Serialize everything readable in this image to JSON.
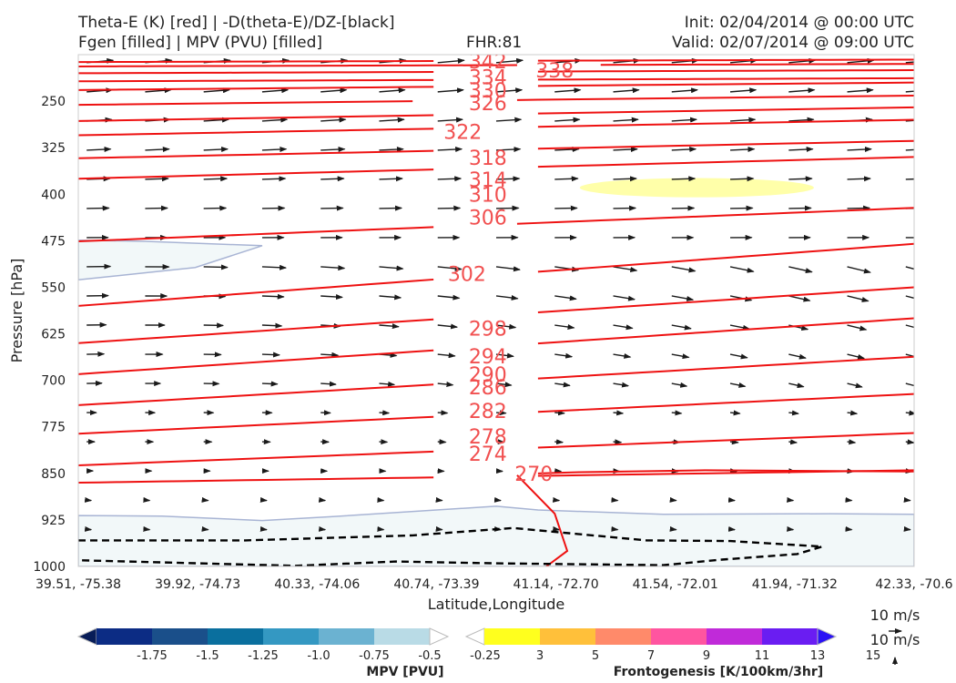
{
  "header": {
    "title_left_1": "Theta-E (K) [red] | -D(theta-E)/DZ-[black]",
    "title_left_2": "Fgen [filled] | MPV (PVU) [filled]",
    "fhr": "FHR:81",
    "init": "Init: 02/04/2014 @ 00:00 UTC",
    "valid": "Valid: 02/07/2014 @ 09:00 UTC"
  },
  "chart_data": {
    "type": "cross-section",
    "xlabel": "Latitude,Longitude",
    "ylabel": "Pressure [hPa]",
    "x_ticks": [
      "39.51, -75.38",
      "39.92, -74.73",
      "40.33, -74.06",
      "40.74, -73.39",
      "41.14, -72.70",
      "41.54, -72.01",
      "41.94, -71.32",
      "42.33, -70.6"
    ],
    "y_ticks": [
      250,
      325,
      400,
      475,
      550,
      625,
      700,
      775,
      850,
      925,
      1000
    ],
    "ylim": [
      175,
      1000
    ],
    "y_inverted": true,
    "theta_e_contours": [
      {
        "label": "342",
        "left": 187,
        "right": 183
      },
      {
        "label": "338",
        "left": 194,
        "right": 190
      },
      {
        "label": "334",
        "left": 205,
        "right": 200
      },
      {
        "label": "330",
        "left": 218,
        "right": 213
      },
      {
        "label": "326",
        "left": 232,
        "right": 220
      },
      {
        "label": "322",
        "left": 256,
        "right": 241
      },
      {
        "label": "318",
        "left": 282,
        "right": 260
      },
      {
        "label": "314",
        "left": 305,
        "right": 280
      },
      {
        "label": "310",
        "left": 342,
        "right": 314
      },
      {
        "label": "306",
        "left": 375,
        "right": 340
      },
      {
        "label": "302",
        "left": 476,
        "right": 422
      },
      {
        "label": "298",
        "left": 580,
        "right": 480
      },
      {
        "label": "294",
        "left": 640,
        "right": 550
      },
      {
        "label": "290",
        "left": 690,
        "right": 600
      },
      {
        "label": "286",
        "left": 740,
        "right": 662
      },
      {
        "label": "282",
        "left": 786,
        "right": 722
      },
      {
        "label": "278",
        "left": 837,
        "right": 785
      },
      {
        "label": "274",
        "left": 865,
        "right": 845
      },
      {
        "label": "270",
        "left": 868,
        "right": 868
      }
    ],
    "theta_e_label_positions": [
      {
        "label": "342",
        "x_frac": 0.49,
        "p": 185
      },
      {
        "label": "338",
        "x_frac": 0.57,
        "p": 200
      },
      {
        "label": "334",
        "x_frac": 0.49,
        "p": 211
      },
      {
        "label": "330",
        "x_frac": 0.49,
        "p": 232
      },
      {
        "label": "326",
        "x_frac": 0.49,
        "p": 253
      },
      {
        "label": "322",
        "x_frac": 0.46,
        "p": 299
      },
      {
        "label": "318",
        "x_frac": 0.49,
        "p": 341
      },
      {
        "label": "314",
        "x_frac": 0.49,
        "p": 376
      },
      {
        "label": "310",
        "x_frac": 0.49,
        "p": 400
      },
      {
        "label": "306",
        "x_frac": 0.49,
        "p": 437
      },
      {
        "label": "302",
        "x_frac": 0.465,
        "p": 528
      },
      {
        "label": "298",
        "x_frac": 0.49,
        "p": 616
      },
      {
        "label": "294",
        "x_frac": 0.49,
        "p": 661
      },
      {
        "label": "290",
        "x_frac": 0.49,
        "p": 690
      },
      {
        "label": "286",
        "x_frac": 0.49,
        "p": 711
      },
      {
        "label": "282",
        "x_frac": 0.49,
        "p": 749
      },
      {
        "label": "278",
        "x_frac": 0.49,
        "p": 790
      },
      {
        "label": "274",
        "x_frac": 0.49,
        "p": 818
      },
      {
        "label": "270",
        "x_frac": 0.545,
        "p": 850
      }
    ],
    "fgen_region": {
      "level": 3,
      "x_frac": [
        0.6,
        0.88
      ],
      "p": [
        374,
        405
      ]
    },
    "mpv_regions": [
      {
        "level": -0.25,
        "points": [
          [
            0,
            474
          ],
          [
            0.08,
            476
          ],
          [
            0.22,
            483
          ],
          [
            0.14,
            518
          ],
          [
            0,
            538
          ]
        ]
      },
      {
        "level": -0.25,
        "points": [
          [
            0,
            918
          ],
          [
            0.1,
            919
          ],
          [
            0.22,
            926
          ],
          [
            0.3,
            920
          ],
          [
            0.5,
            903
          ],
          [
            0.55,
            909
          ],
          [
            0.7,
            916
          ],
          [
            0.9,
            915
          ],
          [
            1,
            916
          ],
          [
            1,
            1000
          ],
          [
            0,
            1000
          ]
        ]
      }
    ],
    "dtheta_dz_contour": [
      [
        0,
        958
      ],
      [
        0.2,
        958
      ],
      [
        0.4,
        950
      ],
      [
        0.52,
        938
      ],
      [
        0.68,
        958
      ],
      [
        0.78,
        959
      ],
      [
        0.89,
        968
      ],
      [
        0.86,
        980
      ],
      [
        0.77,
        989
      ],
      [
        0.7,
        998
      ],
      [
        0.5,
        995
      ],
      [
        0.38,
        992
      ],
      [
        0.26,
        999
      ],
      [
        0,
        990
      ]
    ],
    "wind_ref_label": "10 m/s",
    "mpv_colorbar": {
      "title": "MPV [PVU]",
      "ticks": [
        "-1.75",
        "-1.5",
        "-1.25",
        "-1.0",
        "-0.75",
        "-0.5",
        "-0.25"
      ],
      "colors": [
        "#081d58",
        "#0c2c84",
        "#1a4f8a",
        "#0a6f9e",
        "#3498c2",
        "#6bb2d1",
        "#b9dbe6",
        "#ffffff"
      ]
    },
    "fgen_colorbar": {
      "title": "Frontogenesis [K/100km/3hr]",
      "ticks": [
        "3",
        "5",
        "7",
        "9",
        "11",
        "13",
        "15"
      ],
      "colors": [
        "#ffffff",
        "#ffff1e",
        "#ffc03a",
        "#ff8a6a",
        "#ff55a0",
        "#c02ad9",
        "#6a1df2",
        "#2a12f5"
      ]
    },
    "colors": {
      "theta_e": "#ee1111",
      "label": "#f15050",
      "mpv_outline": "#a8b4d4",
      "mpv_fill": "#f2f8f9",
      "fgen": "#ffff9a",
      "barb": "#1a1a1a"
    }
  }
}
